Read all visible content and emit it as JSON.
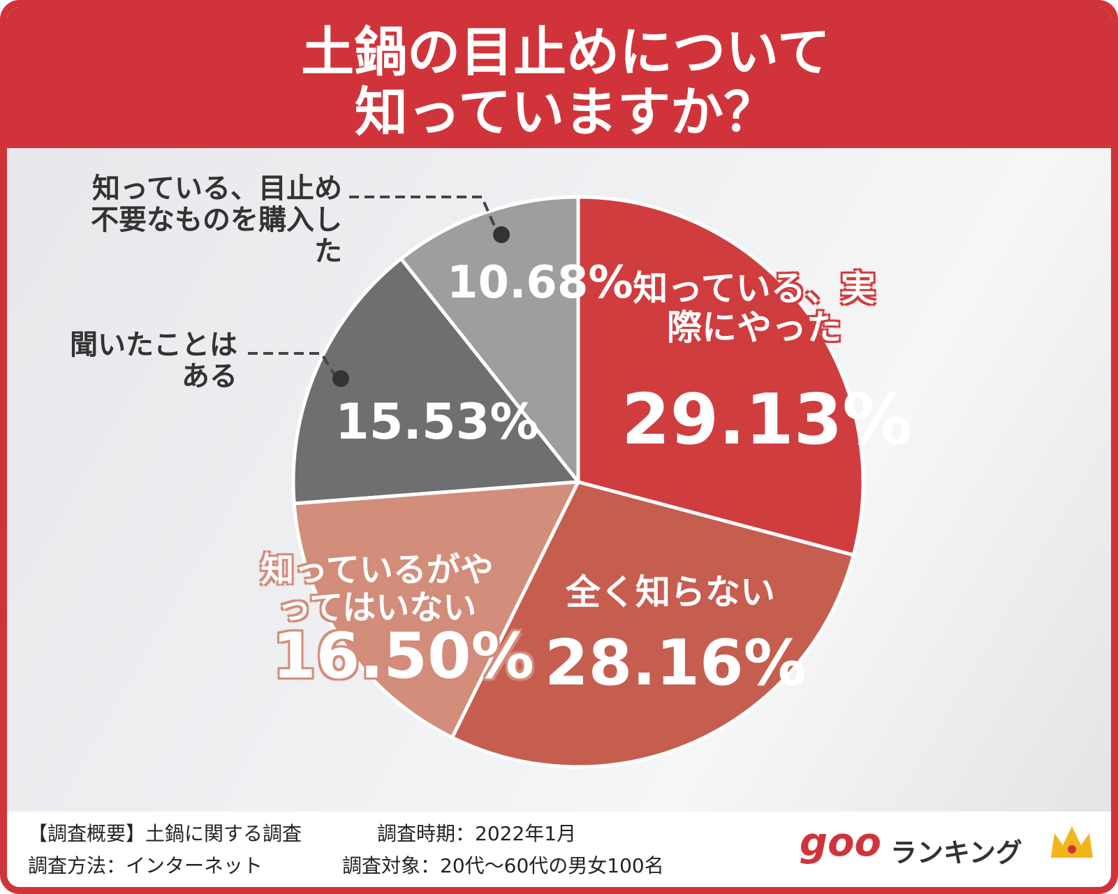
{
  "chart_data": {
    "type": "pie",
    "title": "土鍋の目止めについて知っていますか？",
    "categories": [
      "知っている、実際にやった",
      "全く知らない",
      "知っているがやってはいない",
      "聞いたことはある",
      "知っている、目止め不要なものを購入した"
    ],
    "values": [
      29.13,
      28.16,
      16.5,
      15.53,
      10.68
    ],
    "value_labels": [
      "29.13%",
      "28.16%",
      "16.50%",
      "15.53%",
      "10.68%"
    ],
    "colors": [
      "#d03d3f",
      "#c65e50",
      "#d38d7b",
      "#6f6e71",
      "#9e9da0"
    ]
  },
  "footer": {
    "lines": [
      "【調査概要】土鍋に関する調査",
      "調査時期：2022年1月",
      "調査方法：インターネット",
      "調査対象：20代〜60代の男女100名"
    ],
    "logo": "goo",
    "logo_text": "ランキング"
  }
}
